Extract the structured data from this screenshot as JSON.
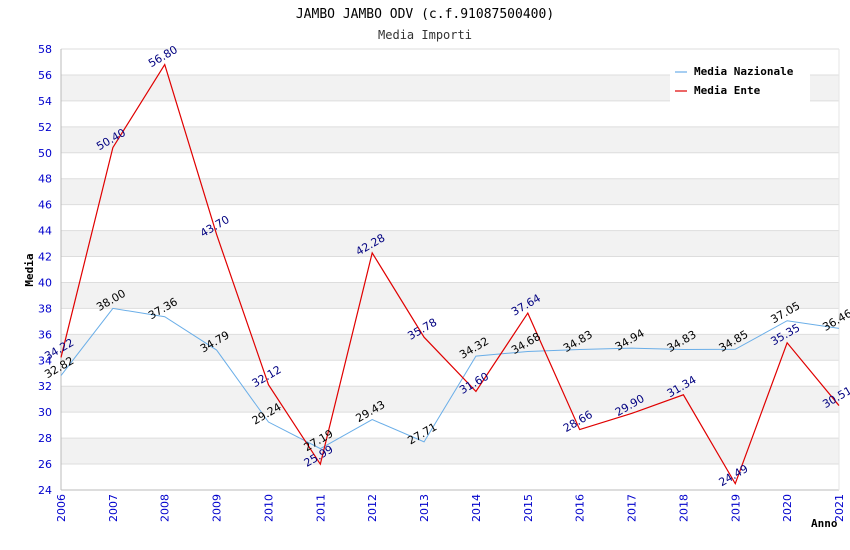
{
  "chart_data": {
    "type": "line",
    "title": "JAMBO JAMBO ODV (c.f.91087500400)",
    "subtitle": "Media Importi",
    "xlabel": "Anno",
    "ylabel": "Media",
    "ylim": [
      24,
      58
    ],
    "y_ticks": [
      "24",
      "26",
      "28",
      "30",
      "32",
      "34",
      "36",
      "38",
      "40",
      "42",
      "44",
      "46",
      "48",
      "50",
      "52",
      "54",
      "56",
      "58"
    ],
    "x": [
      "2006",
      "2007",
      "2008",
      "2009",
      "2010",
      "2011",
      "2012",
      "2013",
      "2014",
      "2015",
      "2016",
      "2017",
      "2018",
      "2019",
      "2020",
      "2021"
    ],
    "grid": "horizontal bands",
    "legend_position": "top-right",
    "series": [
      {
        "name": "Media Nazionale",
        "color": "#6aaee8",
        "values": [
          32.82,
          38.0,
          37.36,
          34.79,
          29.24,
          27.19,
          29.43,
          27.71,
          34.32,
          34.68,
          34.83,
          34.94,
          34.83,
          34.85,
          37.05,
          36.46
        ],
        "labels": [
          "32.82",
          "38.00",
          "37.36",
          "34.79",
          "29.24",
          "27.19",
          "29.43",
          "27.71",
          "34.32",
          "34.68",
          "34.83",
          "34.94",
          "34.83",
          "34.85",
          "37.05",
          "36.46"
        ]
      },
      {
        "name": "Media Ente",
        "color": "#e00000",
        "values": [
          34.22,
          50.4,
          56.8,
          43.7,
          32.12,
          25.99,
          42.28,
          35.78,
          31.6,
          37.64,
          28.66,
          29.9,
          31.34,
          24.49,
          35.35,
          30.51
        ],
        "labels": [
          "34.22",
          "50.40",
          "56.80",
          "43.70",
          "32.12",
          "25.99",
          "42.28",
          "35.78",
          "31.60",
          "37.64",
          "28.66",
          "29.90",
          "31.34",
          "24.49",
          "35.35",
          "30.51"
        ]
      }
    ]
  }
}
